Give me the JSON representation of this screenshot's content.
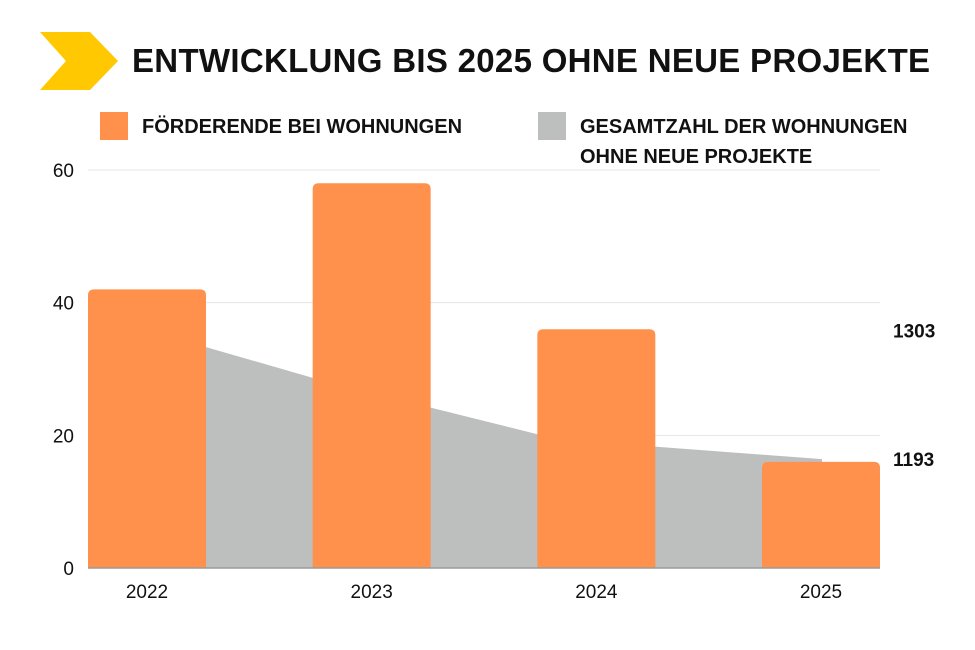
{
  "title": "ENTWICKLUNG BIS 2025 OHNE NEUE PROJEKTE",
  "colors": {
    "accent": "#FFC800",
    "bar": "#FF914D",
    "area": "#BDBEBE",
    "grid": "#E6E6E6",
    "axis": "#9A9A9A"
  },
  "legend": [
    {
      "label": "FÖRDERENDE BEI WOHNUNGEN",
      "color": "#FF914D"
    },
    {
      "label": "GESAMTZAHL DER WOHNUNGEN OHNE NEUE PROJEKTE",
      "color": "#BDBEBE"
    }
  ],
  "chart_data": {
    "type": "bar",
    "categories": [
      "2022",
      "2023",
      "2024",
      "2025"
    ],
    "yticks": [
      0,
      20,
      40,
      60
    ],
    "ylim": [
      0,
      60
    ],
    "series": [
      {
        "name": "FÖRDERENDE BEI WOHNUNGEN",
        "type": "bar",
        "values": [
          42,
          58,
          36,
          16
        ]
      },
      {
        "name": "GESAMTZAHL DER WOHNUNGEN OHNE NEUE PROJEKTE",
        "type": "area",
        "values": [
          1303,
          1260,
          1210,
          1193
        ]
      }
    ],
    "secondary_axis": {
      "ylim": [
        1100,
        1440
      ],
      "labels": [
        "1303",
        "1193"
      ]
    },
    "grid": true
  }
}
